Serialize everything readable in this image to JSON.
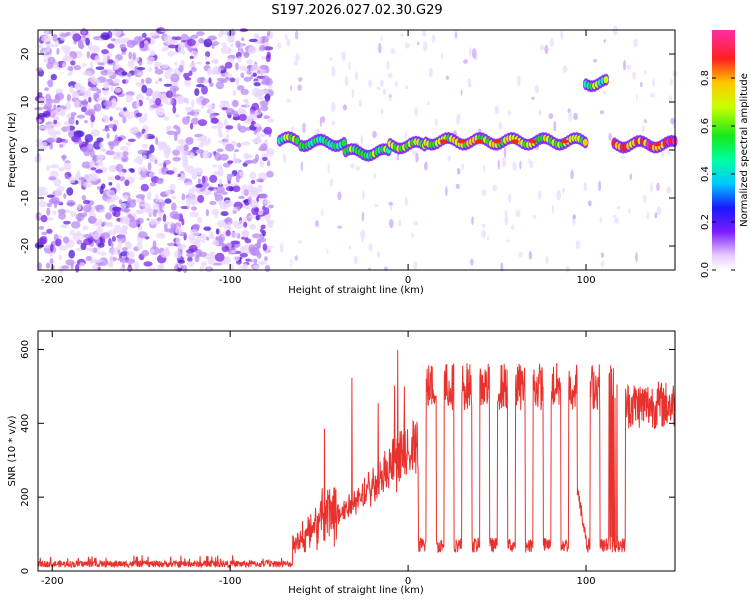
{
  "title": "S197.2026.027.02.30.G29",
  "colors": {
    "snr_line": "#e8322e",
    "grid": "#000000",
    "background": "#ffffff"
  },
  "chart_data": [
    {
      "type": "heatmap",
      "name": "spectrogram",
      "xlabel": "Height of straight line (km)",
      "ylabel": "Frequency (Hz)",
      "xlim": [
        -208,
        150
      ],
      "ylim": [
        -25,
        25
      ],
      "xticks": [
        -200,
        -100,
        0,
        100
      ],
      "yticks": [
        20,
        10,
        0,
        -10,
        -20
      ],
      "noise_region_x": [
        -208,
        -77
      ],
      "signal_segments": [
        {
          "x0": -72,
          "x1": -62,
          "freq": 2,
          "amp": 0.5
        },
        {
          "x0": -60,
          "x1": -35,
          "freq": 1.5,
          "amp": 0.45
        },
        {
          "x0": -35,
          "x1": -10,
          "freq": -0.5,
          "amp": 0.5
        },
        {
          "x0": -10,
          "x1": 10,
          "freq": 1,
          "amp": 0.55
        },
        {
          "x0": 10,
          "x1": 100,
          "freq": 1.8,
          "amp": 0.6
        },
        {
          "x0": 100,
          "x1": 112,
          "freq": 14,
          "amp": 0.5
        },
        {
          "x0": 116,
          "x1": 150,
          "freq": 1.2,
          "amp": 0.75
        }
      ],
      "peaks": [
        20,
        30,
        40,
        50,
        60,
        70,
        88,
        140
      ],
      "colorbar": {
        "label": "Normalized spectral amplitude",
        "range": [
          0,
          1
        ],
        "ticks": [
          0.0,
          0.2,
          0.4,
          0.6,
          0.8
        ],
        "tick_labels": [
          "0.0",
          "0.2",
          "0.4",
          "0.6",
          "0.8"
        ]
      }
    },
    {
      "type": "line",
      "name": "snr",
      "xlabel": "Height of straight line (km)",
      "ylabel": "SNR (10 * v/v)",
      "xlim": [
        -208,
        150
      ],
      "ylim": [
        0,
        650
      ],
      "xticks": [
        -200,
        -100,
        0,
        100
      ],
      "yticks": [
        0,
        200,
        400,
        600
      ],
      "noise_level": 20,
      "rise_start_x": -65,
      "dips_x": [
        8,
        18,
        28,
        38,
        48,
        58,
        68,
        78,
        88,
        100,
        110,
        120
      ],
      "dip_level": 50,
      "plateau_level": 500,
      "series": [
        {
          "name": "SNR",
          "color": "#e8322e"
        }
      ]
    }
  ]
}
